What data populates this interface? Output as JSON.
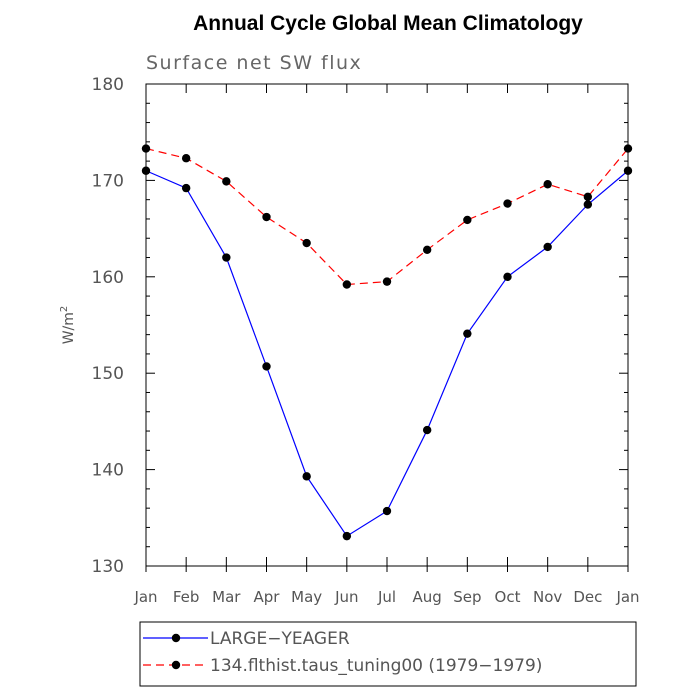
{
  "chart_data": {
    "type": "line",
    "title": "Annual Cycle Global Mean Climatology",
    "subtitle": "Surface net SW flux",
    "ylabel_base": "W/m",
    "ylabel_sup": "2",
    "xlabel": "",
    "categories": [
      "Jan",
      "Feb",
      "Mar",
      "Apr",
      "May",
      "Jun",
      "Jul",
      "Aug",
      "Sep",
      "Oct",
      "Nov",
      "Dec",
      "Jan"
    ],
    "ylim": [
      130,
      180
    ],
    "yticks": [
      130,
      140,
      150,
      160,
      170,
      180
    ],
    "grid": false,
    "legend_position": "bottom",
    "series": [
      {
        "name": "LARGE−YEAGER",
        "color": "#0000ff",
        "dash": "solid",
        "values": [
          171.0,
          169.2,
          162.0,
          150.7,
          139.3,
          133.1,
          135.7,
          144.1,
          154.1,
          160.0,
          163.1,
          167.5,
          171.0
        ]
      },
      {
        "name": "134.flthist.taus_tuning00 (1979−1979)",
        "color": "#ff0000",
        "dash": "dashed",
        "values": [
          173.3,
          172.3,
          169.9,
          166.2,
          163.5,
          159.2,
          159.5,
          162.8,
          165.9,
          167.6,
          169.6,
          168.3,
          173.3
        ]
      }
    ]
  }
}
